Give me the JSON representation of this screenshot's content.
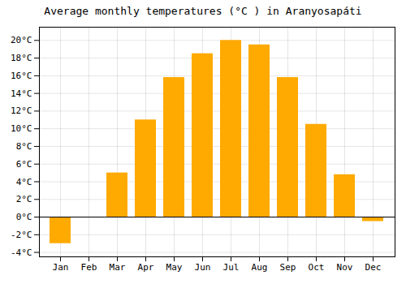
{
  "chart_data": {
    "type": "bar",
    "title": "Average monthly temperatures (°C ) in Aranyosapáti",
    "categories": [
      "Jan",
      "Feb",
      "Mar",
      "Apr",
      "May",
      "Jun",
      "Jul",
      "Aug",
      "Sep",
      "Oct",
      "Nov",
      "Dec"
    ],
    "values": [
      -3.0,
      0.0,
      5.0,
      11.0,
      15.8,
      18.5,
      20.0,
      19.5,
      15.8,
      10.5,
      4.8,
      -0.5
    ],
    "color": "#FFAA00",
    "ylim": [
      -4.5,
      21.5
    ],
    "yticks": [
      {
        "value": -4,
        "label": "-4°C"
      },
      {
        "value": -2,
        "label": "-2°C"
      },
      {
        "value": 0,
        "label": "0°C"
      },
      {
        "value": 2,
        "label": "2°C"
      },
      {
        "value": 4,
        "label": "4°C"
      },
      {
        "value": 6,
        "label": "6°C"
      },
      {
        "value": 8,
        "label": "8°C"
      },
      {
        "value": 10,
        "label": "10°C"
      },
      {
        "value": 12,
        "label": "12°C"
      },
      {
        "value": 14,
        "label": "14°C"
      },
      {
        "value": 16,
        "label": "16°C"
      },
      {
        "value": 18,
        "label": "18°C"
      },
      {
        "value": 20,
        "label": "20°C"
      }
    ],
    "grid": true
  }
}
